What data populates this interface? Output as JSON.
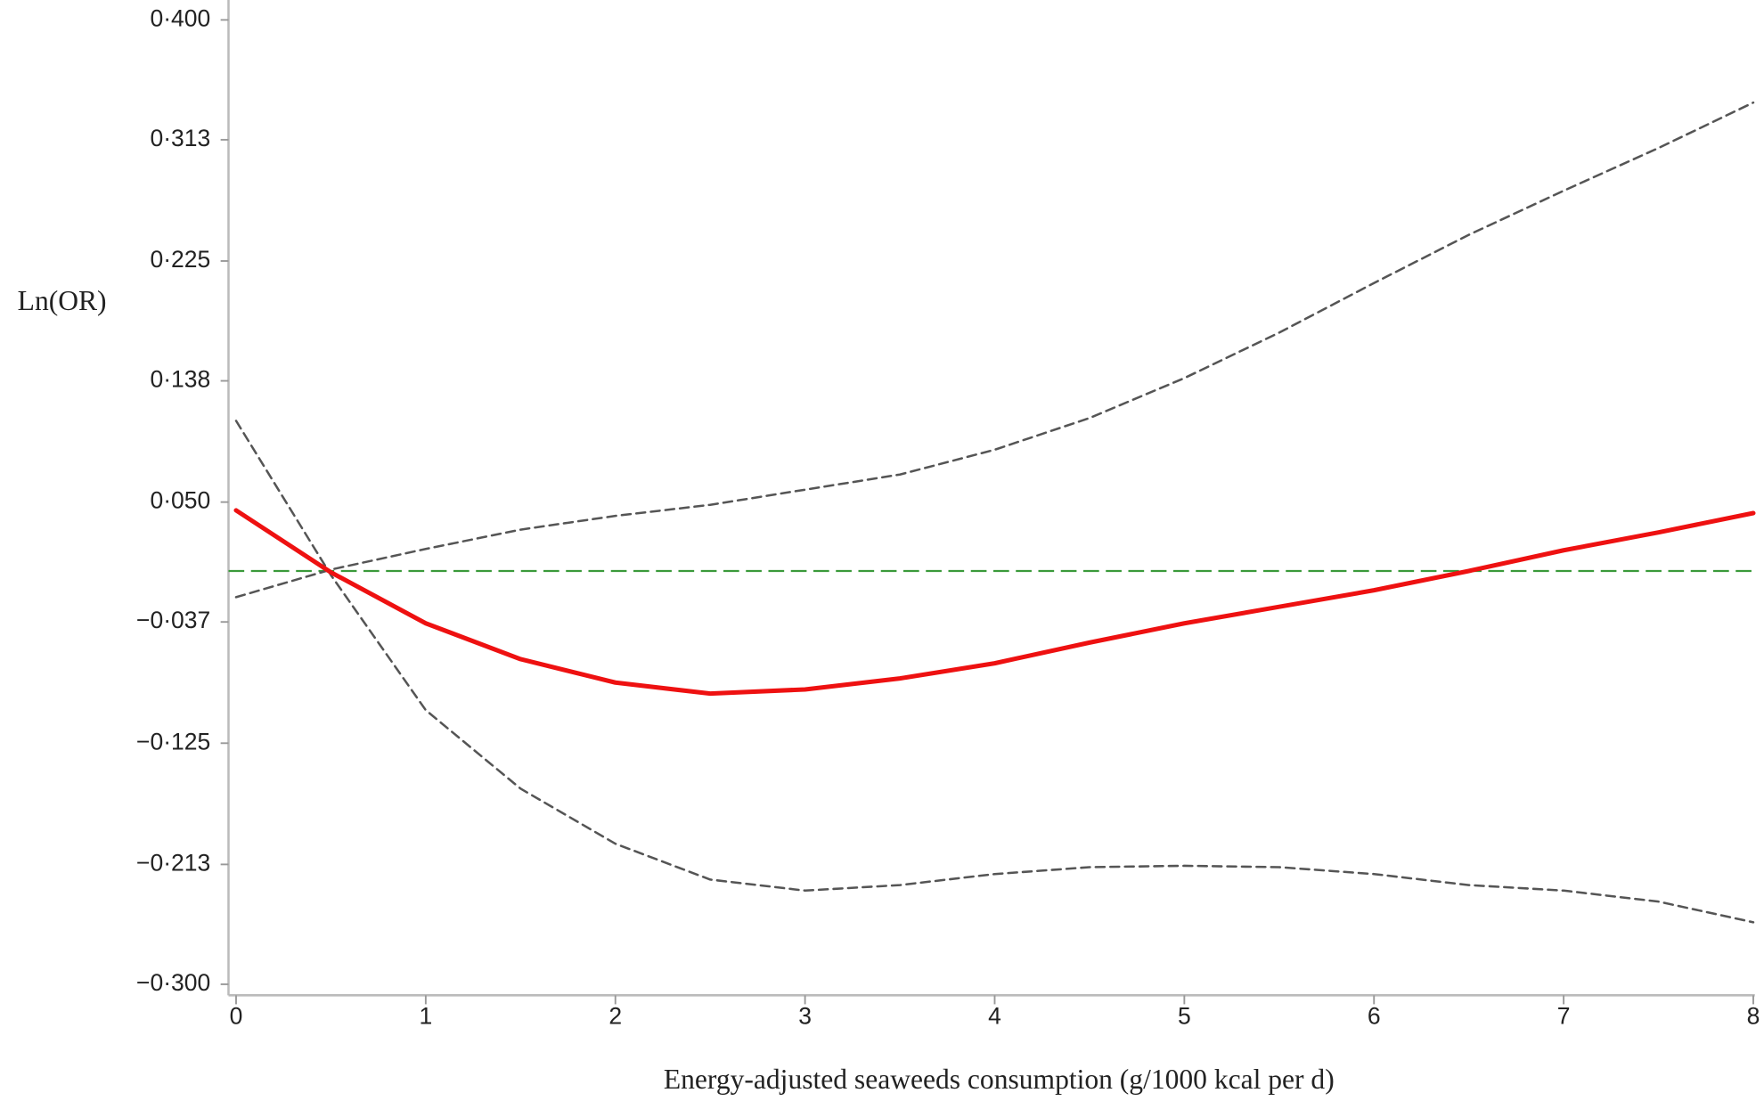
{
  "chart_data": {
    "type": "line",
    "x_label": "Energy-adjusted seaweeds consumption (g/1000 kcal per d)",
    "y_label": "Ln(OR)",
    "x": [
      0,
      0.5,
      1,
      1.5,
      2,
      2.5,
      3,
      3.5,
      4,
      4.5,
      5,
      5.5,
      6,
      6.5,
      7,
      7.5,
      8
    ],
    "series": [
      {
        "color": "#ee1111",
        "style": "solid",
        "values": [
          0.044,
          -0.001,
          -0.038,
          -0.064,
          -0.081,
          -0.089,
          -0.086,
          -0.078,
          -0.067,
          -0.052,
          -0.038,
          -0.026,
          -0.014,
          0.0,
          0.015,
          0.028,
          0.042
        ]
      },
      {
        "color": "#555555",
        "style": "dashed",
        "values": [
          -0.019,
          0.001,
          0.016,
          0.03,
          0.04,
          0.048,
          0.059,
          0.07,
          0.088,
          0.111,
          0.14,
          0.173,
          0.209,
          0.244,
          0.276,
          0.307,
          0.34
        ]
      },
      {
        "color": "#555555",
        "style": "dashed",
        "values": [
          0.109,
          -0.003,
          -0.101,
          -0.158,
          -0.198,
          -0.224,
          -0.232,
          -0.228,
          -0.22,
          -0.215,
          -0.214,
          -0.215,
          -0.22,
          -0.228,
          -0.232,
          -0.24,
          -0.255
        ]
      }
    ],
    "reference_line": {
      "value": 0,
      "color": "#3a9a3a"
    },
    "xlim": [
      -0.04,
      8.02
    ],
    "ylim": [
      -0.308,
      0.412
    ],
    "xticks": [
      0,
      1,
      2,
      3,
      4,
      5,
      6,
      7,
      8
    ],
    "yticks": [
      {
        "value": 0.4,
        "label": "0·400"
      },
      {
        "value": 0.313,
        "label": "0·313"
      },
      {
        "value": 0.225,
        "label": "0·225"
      },
      {
        "value": 0.138,
        "label": "0·138"
      },
      {
        "value": 0.05,
        "label": "0·050"
      },
      {
        "value": -0.037,
        "label": "−0·037"
      },
      {
        "value": -0.125,
        "label": "−0·125"
      },
      {
        "value": -0.213,
        "label": "−0·213"
      },
      {
        "value": -0.3,
        "label": "−0·300"
      }
    ]
  }
}
